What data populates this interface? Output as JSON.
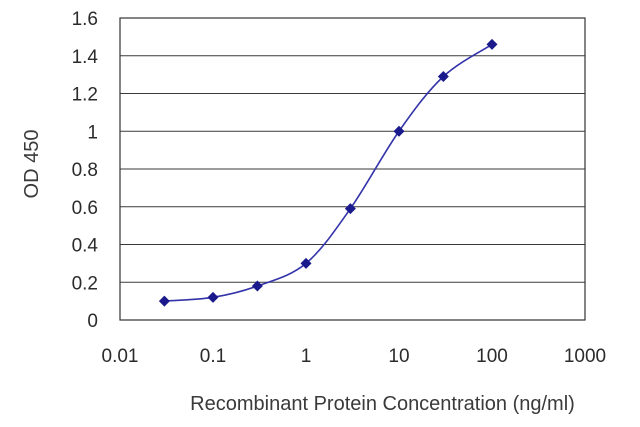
{
  "chart_data": {
    "type": "line",
    "title": "",
    "xlabel": "Recombinant Protein Concentration (ng/ml)",
    "ylabel": "OD 450",
    "x_scale": "log",
    "xlim": [
      0.01,
      1000
    ],
    "ylim": [
      0,
      1.6
    ],
    "x_ticks": [
      "0.01",
      "0.1",
      "1",
      "10",
      "100",
      "1000"
    ],
    "y_ticks": [
      "0",
      "0.2",
      "0.4",
      "0.6",
      "0.8",
      "1",
      "1.2",
      "1.4",
      "1.6"
    ],
    "grid": "horizontal",
    "legend": "none",
    "line_color": "#3333aa",
    "marker_color": "#1a1a8c",
    "series": [
      {
        "x": [
          0.03,
          0.1,
          0.3,
          1,
          3,
          10,
          30,
          100
        ],
        "y": [
          0.1,
          0.12,
          0.18,
          0.3,
          0.59,
          1.0,
          1.29,
          1.46
        ]
      }
    ]
  }
}
